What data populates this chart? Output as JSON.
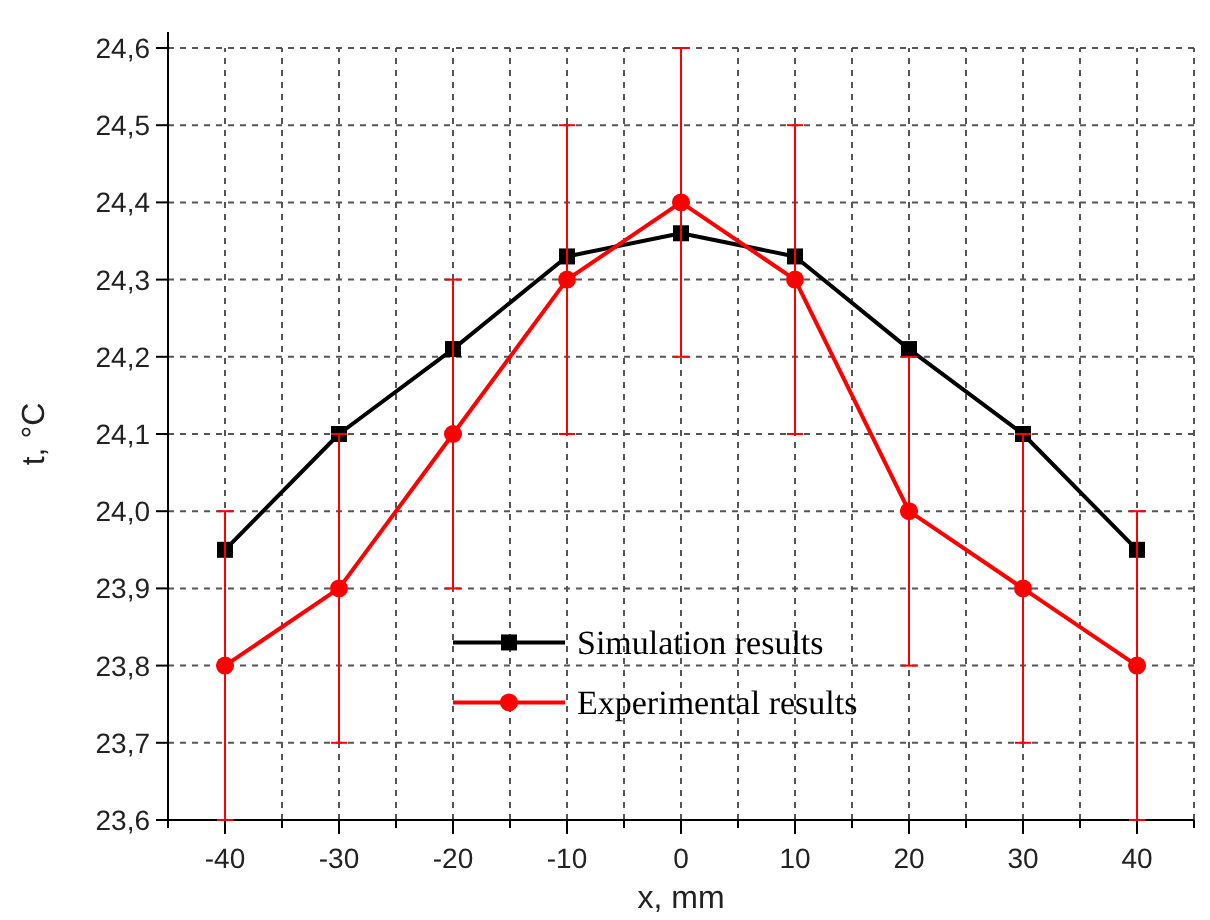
{
  "chart_data": {
    "type": "line",
    "xlabel": "x, mm",
    "ylabel": "t, °C",
    "x": [
      -40,
      -30,
      -20,
      -10,
      0,
      10,
      20,
      30,
      40
    ],
    "series": [
      {
        "name": "Simulation results",
        "color": "#000000",
        "marker": "square",
        "values": [
          23.95,
          24.1,
          24.21,
          24.33,
          24.36,
          24.33,
          24.21,
          24.1,
          23.95
        ]
      },
      {
        "name": "Experimental results",
        "color": "#ff0000",
        "marker": "circle",
        "values": [
          23.8,
          23.9,
          24.1,
          24.3,
          24.4,
          24.3,
          24.0,
          23.9,
          23.8
        ],
        "errors": [
          0.2,
          0.2,
          0.2,
          0.2,
          0.2,
          0.2,
          0.2,
          0.2,
          0.2
        ]
      }
    ],
    "xlim": [
      -45,
      45
    ],
    "xticks": [
      {
        "value": -45,
        "label": null
      },
      -40,
      {
        "value": -35,
        "label": null
      },
      -30,
      {
        "value": -25,
        "label": null
      },
      -20,
      {
        "value": -15,
        "label": null
      },
      -10,
      {
        "value": -5,
        "label": null
      },
      0,
      {
        "value": 5,
        "label": null
      },
      10,
      {
        "value": 15,
        "label": null
      },
      20,
      {
        "value": 25,
        "label": null
      },
      30,
      {
        "value": 35,
        "label": null
      },
      40,
      {
        "value": 45,
        "label": null
      }
    ],
    "ylim": [
      23.6,
      24.6
    ],
    "yticks": [
      {
        "value": 23.6,
        "label": "23,6"
      },
      {
        "value": 23.7,
        "label": "23,7"
      },
      {
        "value": 23.8,
        "label": "23,8"
      },
      {
        "value": 23.9,
        "label": "23,9"
      },
      {
        "value": 24.0,
        "label": "24,0"
      },
      {
        "value": 24.1,
        "label": "24,1"
      },
      {
        "value": 24.2,
        "label": "24,2"
      },
      {
        "value": 24.3,
        "label": "24,3"
      },
      {
        "value": 24.4,
        "label": "24,4"
      },
      {
        "value": 24.5,
        "label": "24,5"
      },
      {
        "value": 24.6,
        "label": "24,6"
      }
    ],
    "grid": true,
    "legend": "bottom",
    "line_style": "solid"
  }
}
